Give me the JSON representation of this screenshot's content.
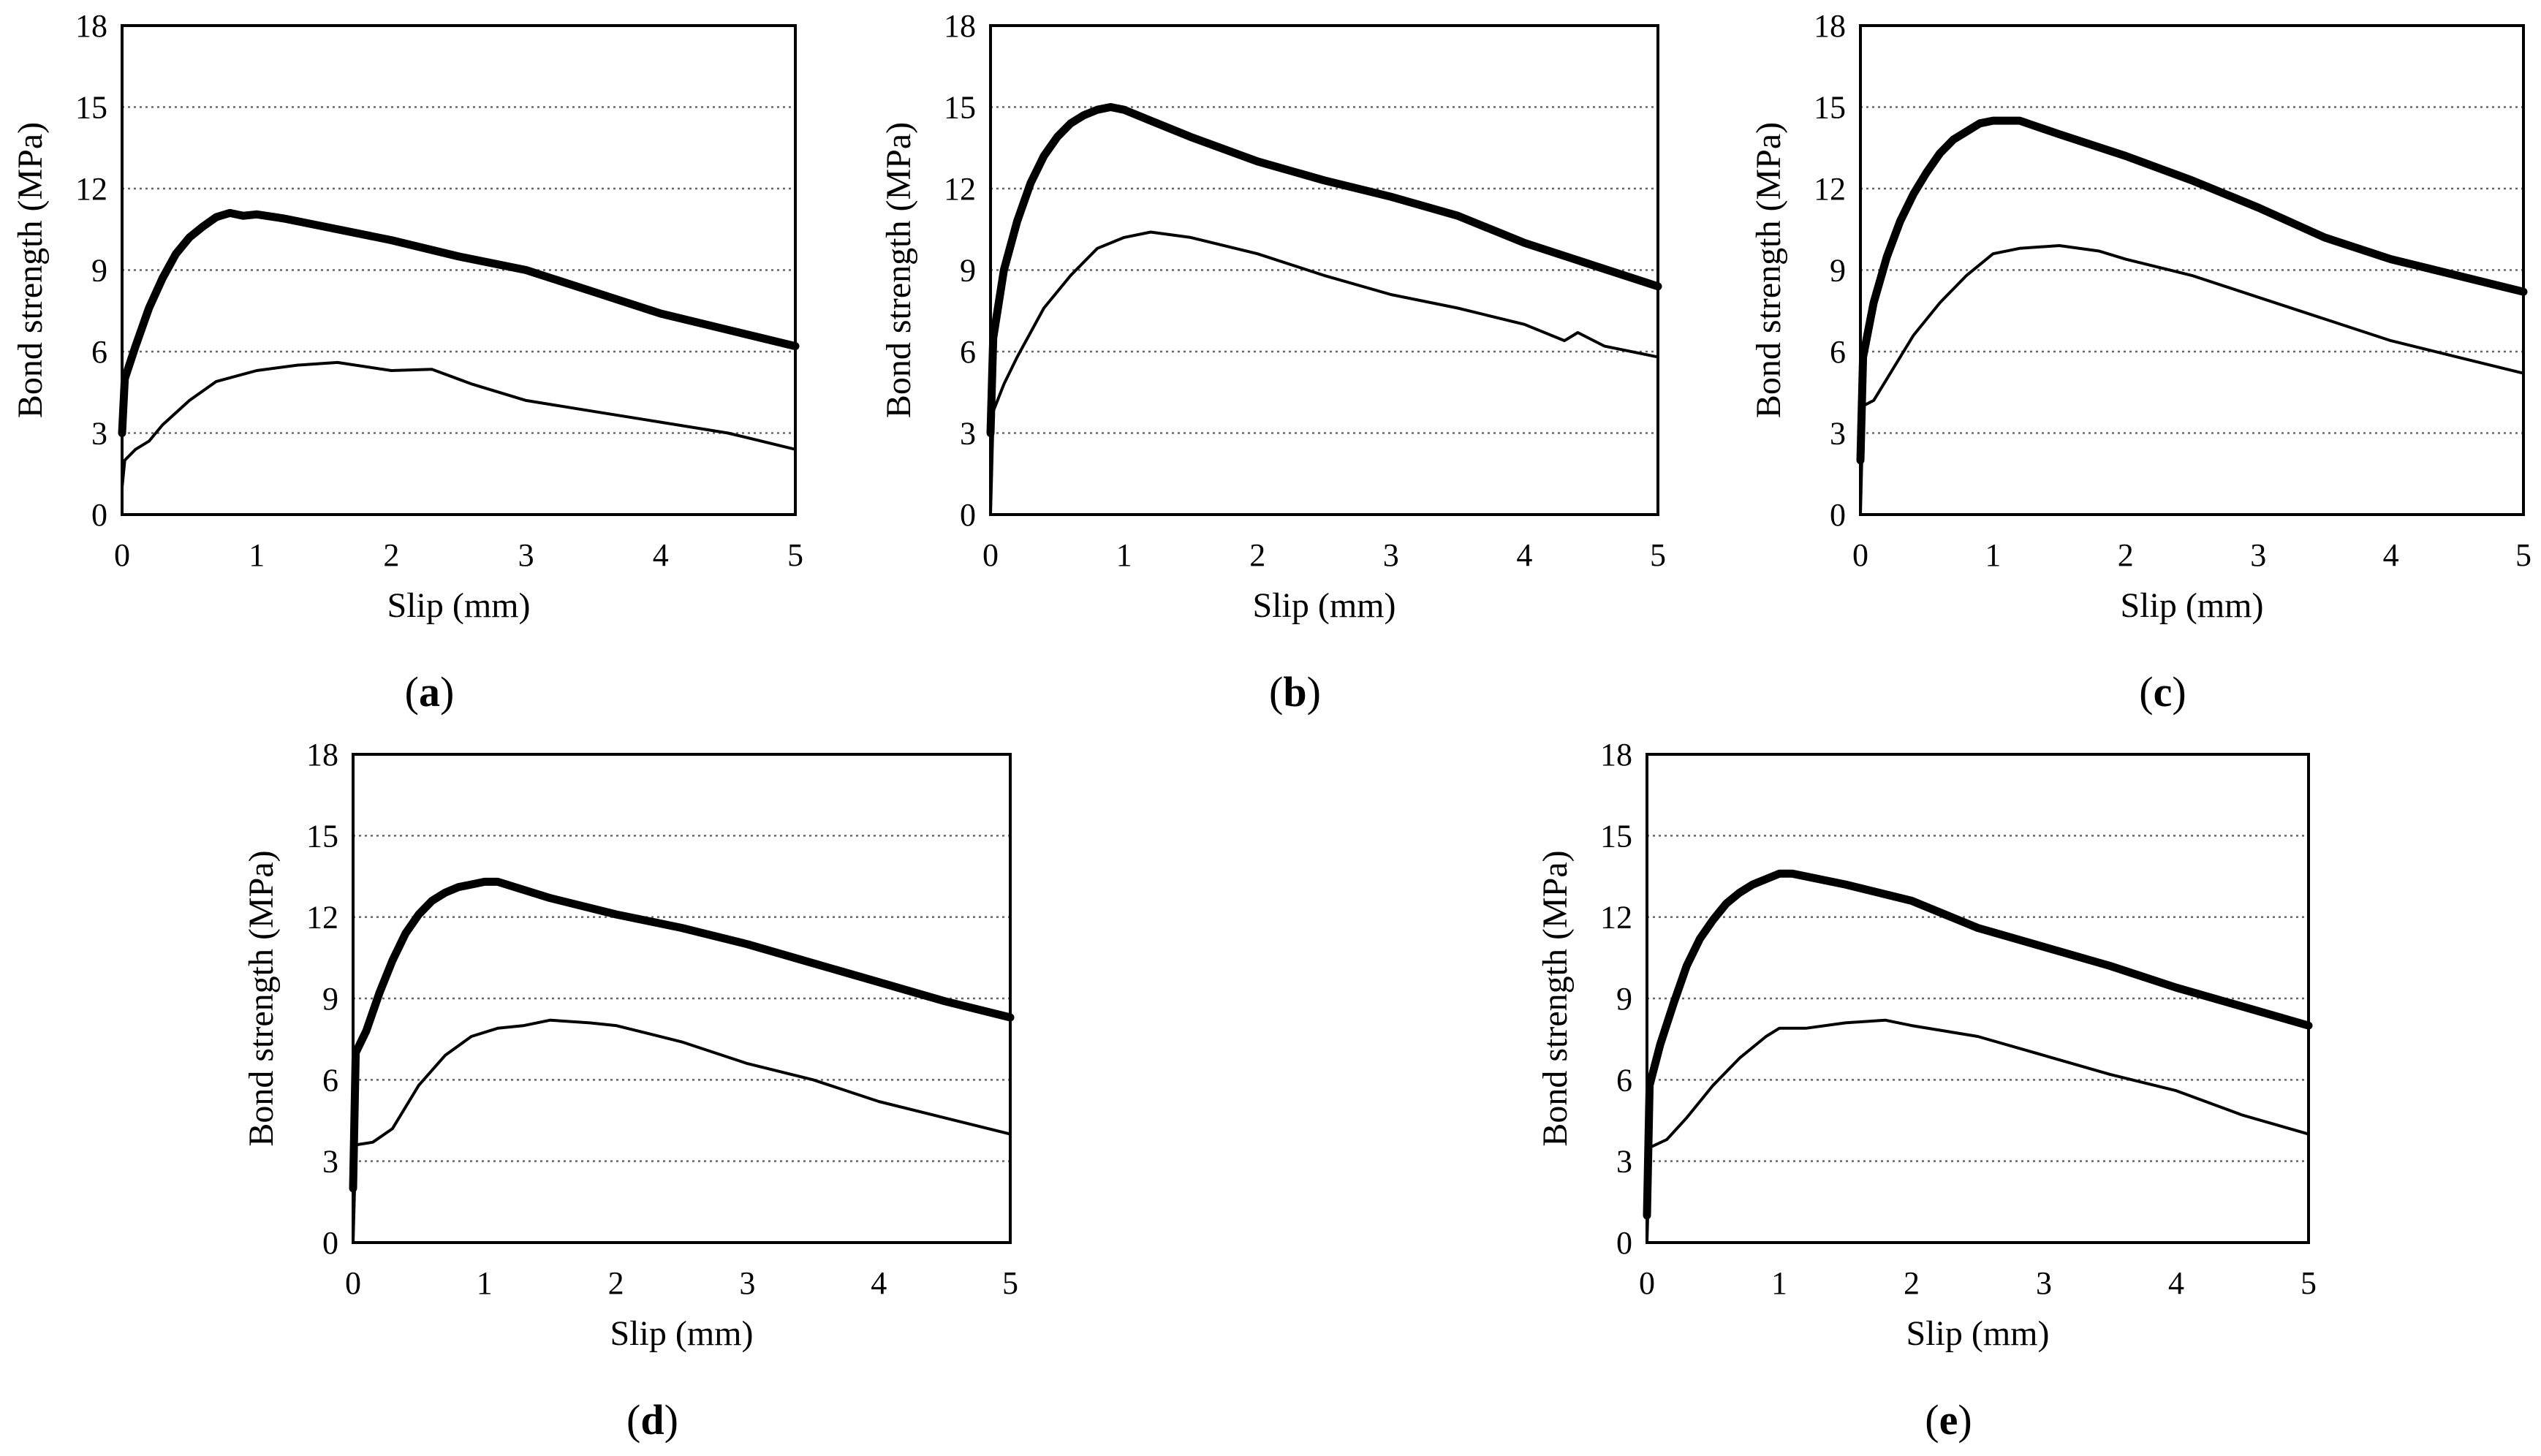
{
  "chart_data": [
    {
      "panel": "a",
      "type": "line",
      "xlabel": "Slip (mm)",
      "ylabel": "Bond strength (MPa)",
      "xlim": [
        0,
        5
      ],
      "ylim": [
        0,
        18
      ],
      "xticks": [
        0,
        1,
        2,
        3,
        4,
        5
      ],
      "yticks": [
        0,
        3,
        6,
        9,
        12,
        15,
        18
      ],
      "grid": "horizontal dotted",
      "caption": {
        "pre": "(",
        "letter": "a",
        "post": ")"
      },
      "series": [
        {
          "name": "upper curve (thick)",
          "x": [
            0,
            0.02,
            0.1,
            0.2,
            0.3,
            0.4,
            0.5,
            0.6,
            0.7,
            0.8,
            0.9,
            1.0,
            1.2,
            1.5,
            2.0,
            2.5,
            3.0,
            3.5,
            4.0,
            4.5,
            5.0
          ],
          "y": [
            3.0,
            5.0,
            6.2,
            7.6,
            8.7,
            9.6,
            10.2,
            10.6,
            10.95,
            11.1,
            11.0,
            11.05,
            10.9,
            10.6,
            10.1,
            9.5,
            9.0,
            8.2,
            7.4,
            6.8,
            6.2
          ]
        },
        {
          "name": "lower curve (thin)",
          "x": [
            0,
            0.02,
            0.1,
            0.2,
            0.3,
            0.5,
            0.7,
            1.0,
            1.3,
            1.6,
            2.0,
            2.3,
            2.6,
            3.0,
            3.5,
            4.0,
            4.5,
            5.0
          ],
          "y": [
            1.0,
            2.0,
            2.4,
            2.7,
            3.3,
            4.2,
            4.9,
            5.3,
            5.5,
            5.6,
            5.3,
            5.35,
            4.8,
            4.2,
            3.8,
            3.4,
            3.0,
            2.4
          ]
        }
      ]
    },
    {
      "panel": "b",
      "type": "line",
      "xlabel": "Slip (mm)",
      "ylabel": "Bond strength (MPa)",
      "xlim": [
        0,
        5
      ],
      "ylim": [
        0,
        18
      ],
      "xticks": [
        0,
        1,
        2,
        3,
        4,
        5
      ],
      "yticks": [
        0,
        3,
        6,
        9,
        12,
        15,
        18
      ],
      "grid": "horizontal dotted",
      "caption": {
        "pre": "(",
        "letter": "b",
        "post": ")"
      },
      "series": [
        {
          "name": "upper curve (thick)",
          "x": [
            0,
            0.02,
            0.1,
            0.2,
            0.3,
            0.4,
            0.5,
            0.6,
            0.7,
            0.8,
            0.9,
            1.0,
            1.2,
            1.5,
            2.0,
            2.5,
            3.0,
            3.5,
            4.0,
            4.5,
            5.0
          ],
          "y": [
            3.0,
            6.5,
            9.0,
            10.8,
            12.2,
            13.2,
            13.9,
            14.4,
            14.7,
            14.9,
            15.0,
            14.9,
            14.5,
            13.9,
            13.0,
            12.3,
            11.7,
            11.0,
            10.0,
            9.2,
            8.4
          ]
        },
        {
          "name": "lower curve (thin)",
          "x": [
            0,
            0.02,
            0.1,
            0.2,
            0.4,
            0.6,
            0.8,
            1.0,
            1.2,
            1.5,
            2.0,
            2.5,
            3.0,
            3.5,
            4.0,
            4.3,
            4.4,
            4.6,
            5.0
          ],
          "y": [
            0.0,
            3.8,
            4.8,
            5.8,
            7.6,
            8.8,
            9.8,
            10.2,
            10.4,
            10.2,
            9.6,
            8.8,
            8.1,
            7.6,
            7.0,
            6.4,
            6.7,
            6.2,
            5.8
          ]
        }
      ]
    },
    {
      "panel": "c",
      "type": "line",
      "xlabel": "Slip (mm)",
      "ylabel": "Bond strength (MPa)",
      "xlim": [
        0,
        5
      ],
      "ylim": [
        0,
        18
      ],
      "xticks": [
        0,
        1,
        2,
        3,
        4,
        5
      ],
      "yticks": [
        0,
        3,
        6,
        9,
        12,
        15,
        18
      ],
      "grid": "horizontal dotted",
      "caption": {
        "pre": "(",
        "letter": "c",
        "post": ")"
      },
      "series": [
        {
          "name": "upper curve (thick)",
          "x": [
            0,
            0.02,
            0.1,
            0.2,
            0.3,
            0.4,
            0.5,
            0.6,
            0.7,
            0.8,
            0.9,
            1.0,
            1.2,
            1.5,
            2.0,
            2.5,
            3.0,
            3.5,
            4.0,
            4.5,
            5.0
          ],
          "y": [
            2.0,
            5.8,
            7.8,
            9.5,
            10.8,
            11.8,
            12.6,
            13.3,
            13.8,
            14.1,
            14.4,
            14.5,
            14.5,
            14.0,
            13.2,
            12.3,
            11.3,
            10.2,
            9.4,
            8.8,
            8.2
          ]
        },
        {
          "name": "lower curve (thin)",
          "x": [
            0,
            0.02,
            0.1,
            0.2,
            0.4,
            0.6,
            0.8,
            1.0,
            1.2,
            1.5,
            1.8,
            2.0,
            2.5,
            3.0,
            3.5,
            4.0,
            4.5,
            5.0
          ],
          "y": [
            0.0,
            4.0,
            4.2,
            5.0,
            6.6,
            7.8,
            8.8,
            9.6,
            9.8,
            9.9,
            9.7,
            9.4,
            8.8,
            8.0,
            7.2,
            6.4,
            5.8,
            5.2
          ]
        }
      ]
    },
    {
      "panel": "d",
      "type": "line",
      "xlabel": "Slip (mm)",
      "ylabel": "Bond strength (MPa)",
      "xlim": [
        0,
        5
      ],
      "ylim": [
        0,
        18
      ],
      "xticks": [
        0,
        1,
        2,
        3,
        4,
        5
      ],
      "yticks": [
        0,
        3,
        6,
        9,
        12,
        15,
        18
      ],
      "grid": "horizontal dotted",
      "caption": {
        "pre": "(",
        "letter": "d",
        "post": ")"
      },
      "series": [
        {
          "name": "upper curve (thick)",
          "x": [
            0,
            0.02,
            0.1,
            0.2,
            0.3,
            0.4,
            0.5,
            0.6,
            0.7,
            0.8,
            0.9,
            1.0,
            1.1,
            1.5,
            2.0,
            2.5,
            3.0,
            3.5,
            4.0,
            4.5,
            5.0
          ],
          "y": [
            2.0,
            7.0,
            7.8,
            9.2,
            10.4,
            11.4,
            12.1,
            12.6,
            12.9,
            13.1,
            13.2,
            13.3,
            13.3,
            12.7,
            12.1,
            11.6,
            11.0,
            10.3,
            9.6,
            8.9,
            8.3
          ]
        },
        {
          "name": "lower curve (thin)",
          "x": [
            0,
            0.02,
            0.15,
            0.3,
            0.5,
            0.7,
            0.9,
            1.1,
            1.3,
            1.5,
            1.8,
            2.0,
            2.5,
            3.0,
            3.5,
            4.0,
            4.5,
            5.0
          ],
          "y": [
            0.0,
            3.6,
            3.7,
            4.2,
            5.8,
            6.9,
            7.6,
            7.9,
            8.0,
            8.2,
            8.1,
            8.0,
            7.4,
            6.6,
            6.0,
            5.2,
            4.6,
            4.0
          ]
        }
      ]
    },
    {
      "panel": "e",
      "type": "line",
      "xlabel": "Slip (mm)",
      "ylabel": "Bond strength (MPa)",
      "xlim": [
        0,
        5
      ],
      "ylim": [
        0,
        18
      ],
      "xticks": [
        0,
        1,
        2,
        3,
        4,
        5
      ],
      "yticks": [
        0,
        3,
        6,
        9,
        12,
        15,
        18
      ],
      "grid": "horizontal dotted",
      "caption": {
        "pre": "(",
        "letter": "e",
        "post": ")"
      },
      "series": [
        {
          "name": "upper curve (thick)",
          "x": [
            0,
            0.02,
            0.1,
            0.2,
            0.3,
            0.4,
            0.5,
            0.6,
            0.7,
            0.8,
            0.9,
            1.0,
            1.1,
            1.5,
            2.0,
            2.5,
            3.0,
            3.5,
            4.0,
            4.5,
            5.0
          ],
          "y": [
            1.0,
            5.8,
            7.3,
            8.8,
            10.2,
            11.2,
            11.9,
            12.5,
            12.9,
            13.2,
            13.4,
            13.6,
            13.6,
            13.2,
            12.6,
            11.6,
            10.9,
            10.2,
            9.4,
            8.7,
            8.0
          ]
        },
        {
          "name": "lower curve (thin)",
          "x": [
            0,
            0.02,
            0.15,
            0.3,
            0.5,
            0.7,
            0.9,
            1.0,
            1.2,
            1.5,
            1.8,
            2.0,
            2.5,
            3.0,
            3.5,
            4.0,
            4.5,
            5.0
          ],
          "y": [
            0.0,
            3.5,
            3.8,
            4.6,
            5.8,
            6.8,
            7.6,
            7.9,
            7.9,
            8.1,
            8.2,
            8.0,
            7.6,
            6.9,
            6.2,
            5.6,
            4.7,
            4.0
          ]
        }
      ]
    }
  ]
}
